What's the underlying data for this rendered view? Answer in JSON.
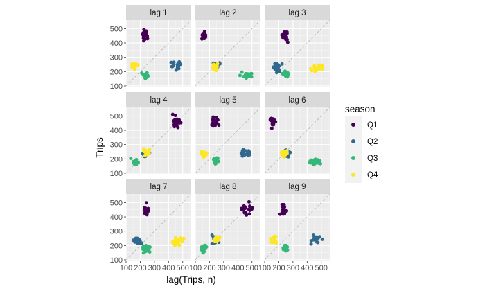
{
  "chart_data": {
    "type": "scatter",
    "title": "",
    "xlabel": "lag(Trips, n)",
    "ylabel": "Trips",
    "xlim": [
      100,
      560
    ],
    "ylim": [
      95,
      560
    ],
    "x_ticks": [
      "100",
      "200",
      "300",
      "400",
      "500"
    ],
    "y_ticks": [
      "100",
      "200",
      "300",
      "400",
      "500"
    ],
    "grid": true,
    "reference_line": "y = x (dashed)",
    "legend": {
      "title": "season",
      "position": "right",
      "entries": [
        {
          "label": "Q1",
          "color": "#440154"
        },
        {
          "label": "Q2",
          "color": "#31688E"
        },
        {
          "label": "Q3",
          "color": "#35B779"
        },
        {
          "label": "Q4",
          "color": "#FDE725"
        }
      ]
    },
    "panels": [
      {
        "label": "lag 1",
        "clusters": [
          {
            "season": "Q1",
            "cx": 230,
            "cy": 460,
            "sx": 20,
            "sy": 42
          },
          {
            "season": "Q2",
            "cx": 455,
            "cy": 240,
            "sx": 45,
            "sy": 30
          },
          {
            "season": "Q3",
            "cx": 245,
            "cy": 175,
            "sx": 28,
            "sy": 24
          },
          {
            "season": "Q4",
            "cx": 160,
            "cy": 240,
            "sx": 22,
            "sy": 24
          }
        ]
      },
      {
        "label": "lag 2",
        "clusters": [
          {
            "season": "Q1",
            "cx": 160,
            "cy": 455,
            "sx": 20,
            "sy": 40
          },
          {
            "season": "Q2",
            "cx": 250,
            "cy": 245,
            "sx": 28,
            "sy": 30
          },
          {
            "season": "Q3",
            "cx": 455,
            "cy": 175,
            "sx": 45,
            "sy": 22
          },
          {
            "season": "Q4",
            "cx": 240,
            "cy": 235,
            "sx": 22,
            "sy": 25
          }
        ]
      },
      {
        "label": "lag 3",
        "clusters": [
          {
            "season": "Q1",
            "cx": 245,
            "cy": 450,
            "sx": 22,
            "sy": 48
          },
          {
            "season": "Q2",
            "cx": 185,
            "cy": 230,
            "sx": 30,
            "sy": 35
          },
          {
            "season": "Q3",
            "cx": 245,
            "cy": 180,
            "sx": 30,
            "sy": 24
          },
          {
            "season": "Q4",
            "cx": 470,
            "cy": 225,
            "sx": 42,
            "sy": 24
          }
        ]
      },
      {
        "label": "lag 4",
        "clusters": [
          {
            "season": "Q1",
            "cx": 460,
            "cy": 460,
            "sx": 40,
            "sy": 42
          },
          {
            "season": "Q2",
            "cx": 240,
            "cy": 230,
            "sx": 26,
            "sy": 30
          },
          {
            "season": "Q3",
            "cx": 160,
            "cy": 180,
            "sx": 26,
            "sy": 25
          },
          {
            "season": "Q4",
            "cx": 245,
            "cy": 245,
            "sx": 25,
            "sy": 25
          }
        ]
      },
      {
        "label": "lag 5",
        "clusters": [
          {
            "season": "Q1",
            "cx": 240,
            "cy": 460,
            "sx": 28,
            "sy": 42
          },
          {
            "season": "Q2",
            "cx": 455,
            "cy": 240,
            "sx": 42,
            "sy": 28
          },
          {
            "season": "Q3",
            "cx": 245,
            "cy": 185,
            "sx": 24,
            "sy": 25
          },
          {
            "season": "Q4",
            "cx": 160,
            "cy": 240,
            "sx": 22,
            "sy": 25
          }
        ]
      },
      {
        "label": "lag 6",
        "clusters": [
          {
            "season": "Q1",
            "cx": 160,
            "cy": 460,
            "sx": 20,
            "sy": 40
          },
          {
            "season": "Q2",
            "cx": 250,
            "cy": 235,
            "sx": 28,
            "sy": 30
          },
          {
            "season": "Q3",
            "cx": 455,
            "cy": 180,
            "sx": 42,
            "sy": 22
          },
          {
            "season": "Q4",
            "cx": 240,
            "cy": 240,
            "sx": 22,
            "sy": 25
          }
        ]
      },
      {
        "label": "lag 7",
        "clusters": [
          {
            "season": "Q1",
            "cx": 245,
            "cy": 450,
            "sx": 22,
            "sy": 45
          },
          {
            "season": "Q2",
            "cx": 180,
            "cy": 230,
            "sx": 30,
            "sy": 35
          },
          {
            "season": "Q3",
            "cx": 245,
            "cy": 180,
            "sx": 28,
            "sy": 25
          },
          {
            "season": "Q4",
            "cx": 470,
            "cy": 230,
            "sx": 42,
            "sy": 28
          }
        ]
      },
      {
        "label": "lag 8",
        "clusters": [
          {
            "season": "Q1",
            "cx": 460,
            "cy": 455,
            "sx": 42,
            "sy": 42
          },
          {
            "season": "Q2",
            "cx": 240,
            "cy": 235,
            "sx": 28,
            "sy": 30
          },
          {
            "season": "Q3",
            "cx": 160,
            "cy": 180,
            "sx": 25,
            "sy": 25
          },
          {
            "season": "Q4",
            "cx": 245,
            "cy": 240,
            "sx": 25,
            "sy": 25
          }
        ]
      },
      {
        "label": "lag 9",
        "clusters": [
          {
            "season": "Q1",
            "cx": 240,
            "cy": 455,
            "sx": 28,
            "sy": 42
          },
          {
            "season": "Q2",
            "cx": 455,
            "cy": 245,
            "sx": 42,
            "sy": 28
          },
          {
            "season": "Q3",
            "cx": 245,
            "cy": 185,
            "sx": 22,
            "sy": 22
          },
          {
            "season": "Q4",
            "cx": 165,
            "cy": 240,
            "sx": 22,
            "sy": 25
          }
        ]
      }
    ]
  }
}
